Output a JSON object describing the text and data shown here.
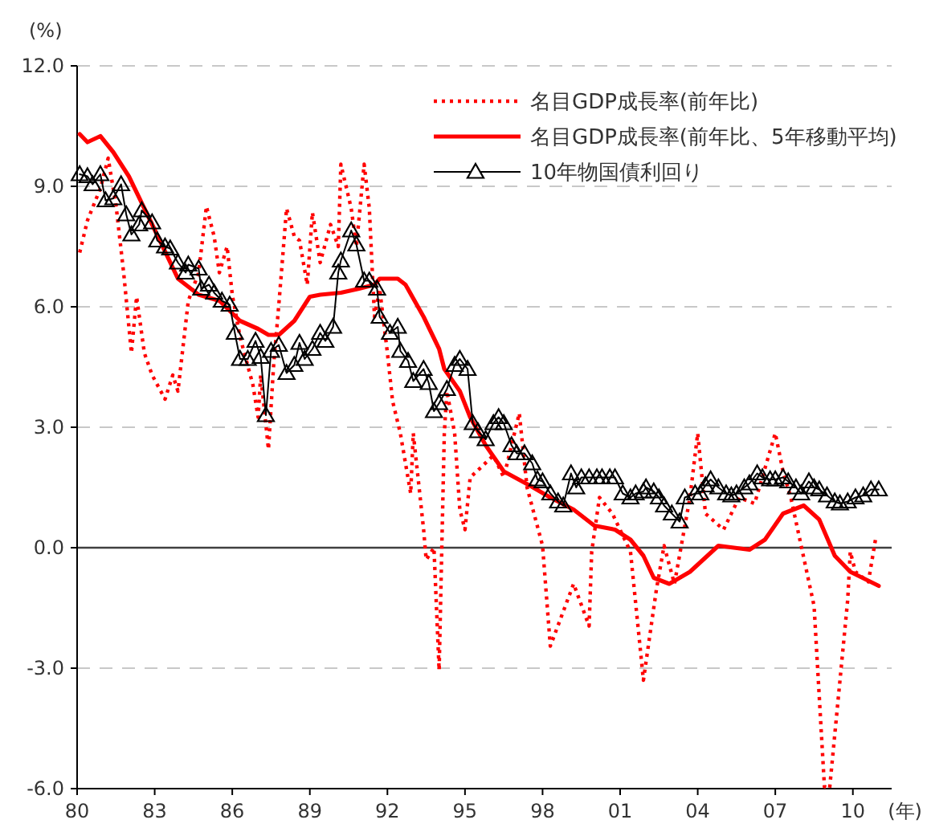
{
  "chart_data": {
    "type": "line",
    "xlabel": "(年)",
    "ylabel": "(%)",
    "xlim": [
      1980,
      2011.5
    ],
    "ylim": [
      -6,
      12
    ],
    "xticks": [
      {
        "value": 1980,
        "label": "80"
      },
      {
        "value": 1983,
        "label": "83"
      },
      {
        "value": 1986,
        "label": "86"
      },
      {
        "value": 1989,
        "label": "89"
      },
      {
        "value": 1992,
        "label": "92"
      },
      {
        "value": 1995,
        "label": "95"
      },
      {
        "value": 1998,
        "label": "98"
      },
      {
        "value": 2001,
        "label": "01"
      },
      {
        "value": 2004,
        "label": "04"
      },
      {
        "value": 2007,
        "label": "07"
      },
      {
        "value": 2010,
        "label": "10"
      }
    ],
    "yticks": [
      {
        "value": -6,
        "label": "-6.0"
      },
      {
        "value": -3,
        "label": "-3.0"
      },
      {
        "value": 0,
        "label": "0.0"
      },
      {
        "value": 3,
        "label": "3.0"
      },
      {
        "value": 6,
        "label": "6.0"
      },
      {
        "value": 9,
        "label": "9.0"
      },
      {
        "value": 12,
        "label": "12.0"
      }
    ],
    "grid": "y",
    "legend": "top right",
    "ref_lines": [
      {
        "axis": "y",
        "value": 0,
        "color": "#404040"
      }
    ],
    "series": [
      {
        "name": "名目GDP成長率(前年比)",
        "color": "#ff0000",
        "line_style": "dotted",
        "marker": "none",
        "x": [
          1980.1,
          1980.4,
          1980.9,
          1981.2,
          1981.5,
          1981.8,
          1982.1,
          1982.3,
          1982.6,
          1982.9,
          1983.4,
          1983.7,
          1983.9,
          1984.3,
          1984.7,
          1985.0,
          1985.3,
          1985.5,
          1985.8,
          1986.0,
          1986.3,
          1986.8,
          1987.0,
          1987.1,
          1987.4,
          1987.6,
          1987.8,
          1988.1,
          1988.4,
          1988.6,
          1988.9,
          1989.1,
          1989.4,
          1989.8,
          1990.1,
          1990.2,
          1990.6,
          1990.8,
          1991.1,
          1991.3,
          1991.5,
          1991.7,
          1992.0,
          1992.2,
          1992.5,
          1992.9,
          1993.0,
          1993.4,
          1993.5,
          1993.8,
          1994.0,
          1994.2,
          1994.3,
          1994.6,
          1994.8,
          1995.0,
          1995.2,
          1995.7,
          1996.1,
          1996.5,
          1997.1,
          1997.4,
          1998.0,
          1998.3,
          1999.2,
          1999.8,
          1999.9,
          2000.2,
          2000.7,
          2001.4,
          2001.9,
          2002.4,
          2002.7,
          2003.1,
          2003.7,
          2004.0,
          2004.3,
          2005.0,
          2005.6,
          2006.2,
          2007.0,
          2007.3,
          2007.6,
          2008.5,
          2008.9,
          2009.1,
          2009.8,
          2009.9,
          2010.1,
          2010.6,
          2010.9
        ],
        "values": [
          7.35,
          8.15,
          8.95,
          9.7,
          8.55,
          6.85,
          4.85,
          6.25,
          4.85,
          4.3,
          3.7,
          4.3,
          3.9,
          6.15,
          6.85,
          8.5,
          7.75,
          6.85,
          7.5,
          6.3,
          5.25,
          4.05,
          3.25,
          4.3,
          2.45,
          4.55,
          6.05,
          8.45,
          7.75,
          7.65,
          6.55,
          8.35,
          7.1,
          8.05,
          7.5,
          9.55,
          8.45,
          7.5,
          9.55,
          8.45,
          5.75,
          6.45,
          4.85,
          3.65,
          2.85,
          1.35,
          2.85,
          0.45,
          -0.3,
          0.0,
          -3.05,
          2.85,
          3.9,
          2.85,
          0.95,
          0.45,
          1.75,
          2.05,
          2.3,
          1.75,
          3.35,
          1.5,
          0.05,
          -2.45,
          -0.9,
          -1.95,
          -0.1,
          1.25,
          0.85,
          -0.1,
          -3.3,
          -1.05,
          0.05,
          -0.9,
          1.25,
          2.85,
          0.85,
          0.45,
          1.25,
          1.1,
          2.85,
          1.9,
          1.25,
          -1.45,
          -5.95,
          -6.0,
          -1.3,
          -0.1,
          -0.6,
          -0.85,
          0.3
        ]
      },
      {
        "name": "名目GDP成長率(前年比、5年移動平均)",
        "color": "#ff0000",
        "line_style": "solid",
        "marker": "none",
        "x": [
          1980.1,
          1980.4,
          1980.9,
          1981.4,
          1982.0,
          1982.6,
          1983.2,
          1983.9,
          1984.7,
          1985.5,
          1986.3,
          1987.0,
          1987.4,
          1987.8,
          1988.4,
          1989.0,
          1989.4,
          1990.2,
          1990.9,
          1991.5,
          1991.7,
          1992.4,
          1992.7,
          1993.4,
          1994.0,
          1994.2,
          1994.8,
          1995.2,
          1995.8,
          1996.5,
          1997.5,
          1998.3,
          1999.2,
          2000.0,
          2000.8,
          2001.4,
          2001.9,
          2002.3,
          2002.9,
          2003.7,
          2004.8,
          2006.0,
          2006.6,
          2007.3,
          2008.1,
          2008.7,
          2009.3,
          2009.9,
          2011.0
        ],
        "values": [
          10.3,
          10.1,
          10.25,
          9.85,
          9.25,
          8.45,
          7.65,
          6.7,
          6.3,
          6.15,
          5.65,
          5.45,
          5.3,
          5.3,
          5.65,
          6.25,
          6.3,
          6.35,
          6.45,
          6.55,
          6.7,
          6.7,
          6.55,
          5.75,
          4.95,
          4.45,
          3.9,
          3.25,
          2.55,
          1.9,
          1.55,
          1.25,
          0.95,
          0.55,
          0.45,
          0.2,
          -0.2,
          -0.75,
          -0.9,
          -0.6,
          0.05,
          -0.05,
          0.2,
          0.85,
          1.05,
          0.7,
          -0.2,
          -0.6,
          -0.95
        ]
      },
      {
        "name": "10年物国債利回り",
        "color": "#000000",
        "line_style": "solid",
        "marker": "triangle",
        "x": [
          1980.1,
          1980.4,
          1980.6,
          1980.9,
          1981.1,
          1981.4,
          1981.7,
          1981.9,
          1982.1,
          1982.4,
          1982.5,
          1982.9,
          1983.1,
          1983.4,
          1983.6,
          1983.9,
          1984.2,
          1984.3,
          1984.7,
          1984.8,
          1985.1,
          1985.3,
          1985.6,
          1985.9,
          1986.1,
          1986.3,
          1986.6,
          1986.9,
          1987.1,
          1987.3,
          1987.5,
          1987.8,
          1988.1,
          1988.4,
          1988.6,
          1988.8,
          1989.1,
          1989.4,
          1989.6,
          1989.9,
          1990.1,
          1990.2,
          1990.6,
          1990.8,
          1991.1,
          1991.3,
          1991.6,
          1991.7,
          1992.1,
          1992.4,
          1992.5,
          1992.8,
          1993.0,
          1993.4,
          1993.6,
          1993.8,
          1994.0,
          1994.3,
          1994.6,
          1994.8,
          1995.1,
          1995.3,
          1995.5,
          1995.8,
          1996.1,
          1996.3,
          1996.5,
          1996.8,
          1997.0,
          1997.3,
          1997.6,
          1997.8,
          1998.0,
          1998.3,
          1998.6,
          1998.8,
          1999.1,
          1999.3,
          1999.5,
          1999.8,
          2000.1,
          2000.3,
          2000.6,
          2000.8,
          2001.1,
          2001.4,
          2001.6,
          2001.9,
          2002.0,
          2002.3,
          2002.5,
          2002.7,
          2003.0,
          2003.3,
          2003.5,
          2003.9,
          2004.1,
          2004.3,
          2004.5,
          2004.8,
          2005.1,
          2005.3,
          2005.5,
          2005.8,
          2006.0,
          2006.3,
          2006.5,
          2006.8,
          2007.0,
          2007.3,
          2007.5,
          2007.8,
          2008.0,
          2008.3,
          2008.5,
          2008.7,
          2009.0,
          2009.3,
          2009.5,
          2009.8,
          2010.1,
          2010.4,
          2010.7,
          2011.0
        ],
        "values": [
          9.3,
          9.25,
          9.05,
          9.3,
          8.65,
          8.7,
          9.05,
          8.3,
          7.8,
          8.05,
          8.4,
          8.1,
          7.65,
          7.5,
          7.45,
          7.1,
          6.85,
          7.05,
          6.95,
          6.45,
          6.55,
          6.35,
          6.15,
          6.05,
          5.35,
          4.7,
          4.7,
          5.15,
          4.75,
          3.3,
          4.9,
          5.05,
          4.35,
          4.55,
          5.1,
          4.7,
          4.95,
          5.35,
          5.15,
          5.5,
          6.85,
          7.15,
          7.9,
          7.55,
          6.65,
          6.65,
          6.45,
          5.75,
          5.35,
          5.5,
          4.9,
          4.65,
          4.15,
          4.45,
          4.1,
          3.4,
          3.6,
          3.95,
          4.55,
          4.7,
          4.45,
          3.1,
          2.9,
          2.7,
          3.1,
          3.25,
          3.1,
          2.55,
          2.35,
          2.35,
          2.1,
          1.7,
          1.65,
          1.35,
          1.15,
          1.05,
          1.85,
          1.5,
          1.75,
          1.75,
          1.75,
          1.75,
          1.75,
          1.75,
          1.35,
          1.25,
          1.35,
          1.4,
          1.5,
          1.4,
          1.25,
          1.05,
          0.85,
          0.65,
          1.25,
          1.35,
          1.35,
          1.55,
          1.7,
          1.5,
          1.35,
          1.3,
          1.35,
          1.5,
          1.6,
          1.85,
          1.75,
          1.7,
          1.7,
          1.75,
          1.65,
          1.5,
          1.35,
          1.65,
          1.5,
          1.45,
          1.3,
          1.15,
          1.1,
          1.15,
          1.25,
          1.3,
          1.45,
          1.45
        ]
      }
    ]
  }
}
